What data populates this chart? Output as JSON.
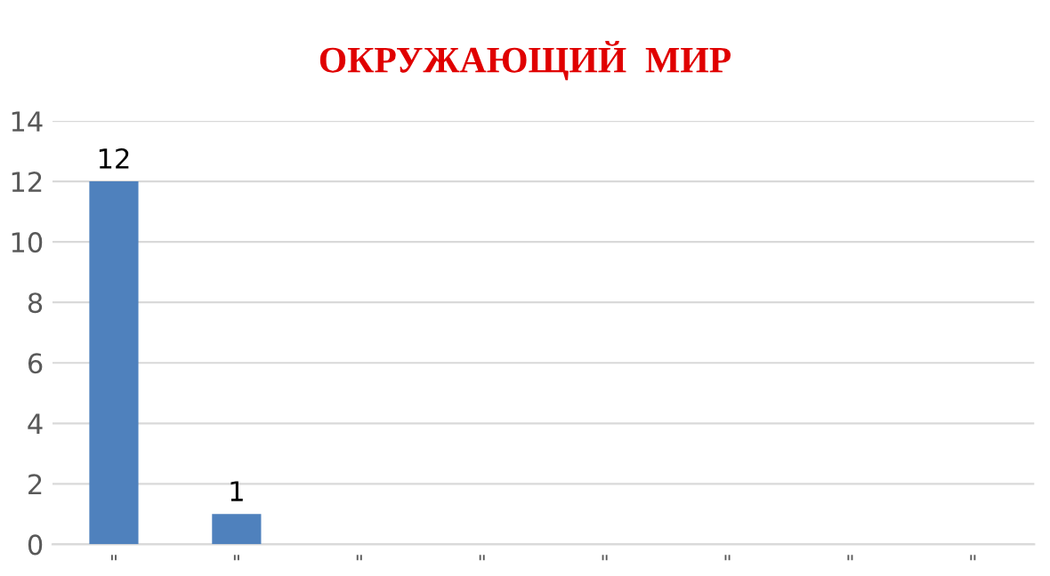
{
  "chart_data": {
    "type": "bar",
    "title": "ОКРУЖАЮЩИЙ  МИР",
    "categories": [
      "\"",
      "\"",
      "\"",
      "\"",
      "\"",
      "\"",
      "\"",
      "\""
    ],
    "values": [
      12,
      1,
      null,
      null,
      null,
      null,
      null,
      null
    ],
    "color": "#4f81bd",
    "ylim": [
      0,
      14
    ],
    "yticks": [
      0,
      2,
      4,
      6,
      8,
      10,
      12,
      14
    ],
    "grid": "y",
    "data_labels": true
  }
}
